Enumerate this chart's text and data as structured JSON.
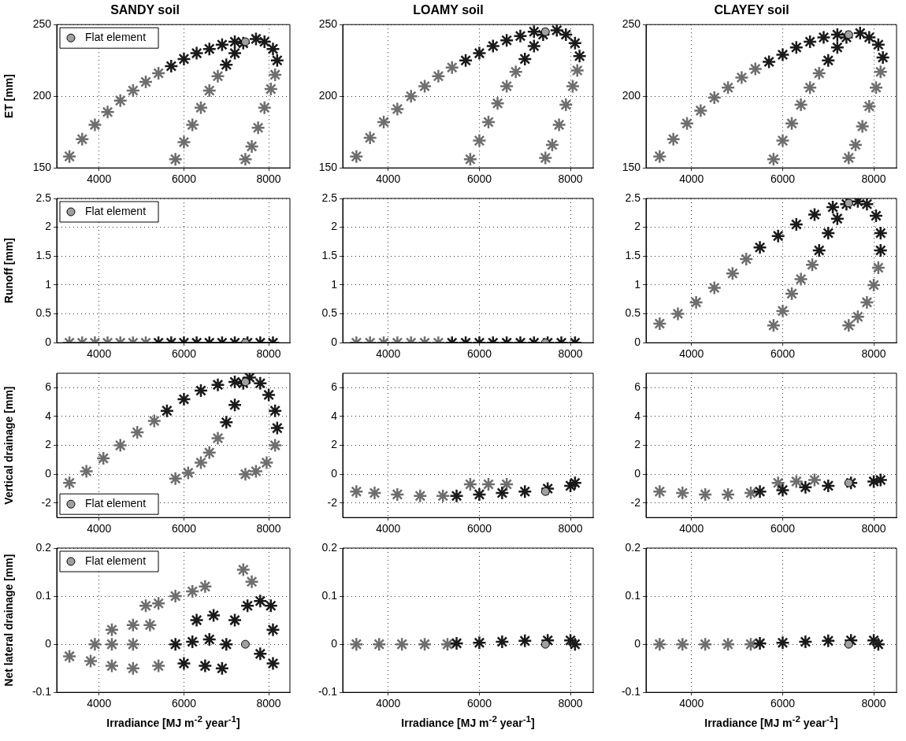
{
  "chart_data": [
    {
      "type": "scatter",
      "title": "SANDY soil",
      "ylabel": "ET [mm]",
      "xlim": [
        3000,
        8500
      ],
      "xticks": [
        4000,
        6000,
        8000
      ],
      "ylim": [
        150,
        250
      ],
      "yticks": [
        150,
        200,
        250
      ],
      "grid": true,
      "legend": "top left",
      "series": [
        {
          "color": "#6e6e6e",
          "marker": "cross",
          "x": [
            3300,
            3600,
            3900,
            4200,
            4500,
            4800,
            5100,
            5400,
            5800,
            6000,
            6200,
            6400,
            6600,
            6800,
            7450,
            7600,
            7750,
            7900,
            8050,
            8150
          ],
          "values": [
            158,
            170,
            180,
            189,
            197,
            204,
            210,
            216,
            156,
            168,
            180,
            192,
            204,
            214,
            156,
            165,
            178,
            192,
            205,
            215
          ]
        },
        {
          "color": "#1a1a1a",
          "marker": "cross",
          "x": [
            5700,
            6000,
            6300,
            6600,
            6900,
            7200,
            7000,
            7200,
            7400,
            8200,
            8100,
            7900,
            7700
          ],
          "values": [
            221,
            226,
            230,
            233,
            236,
            238,
            222,
            230,
            237,
            225,
            233,
            238,
            240
          ]
        },
        {
          "name": "Flat element",
          "color": "#a0a0a0",
          "marker": "circle",
          "x": [
            7450
          ],
          "values": [
            238
          ]
        }
      ]
    },
    {
      "type": "scatter",
      "title": "LOAMY soil",
      "xlim": [
        3000,
        8500
      ],
      "xticks": [
        4000,
        6000,
        8000
      ],
      "ylim": [
        150,
        250
      ],
      "yticks": [
        150,
        200,
        250
      ],
      "grid": true,
      "series": [
        {
          "color": "#6e6e6e",
          "marker": "cross",
          "x": [
            3300,
            3600,
            3900,
            4200,
            4500,
            4800,
            5100,
            5400,
            5800,
            6000,
            6200,
            6400,
            6600,
            6800,
            7450,
            7600,
            7750,
            7900,
            8050,
            8150
          ],
          "values": [
            158,
            171,
            182,
            191,
            200,
            207,
            214,
            220,
            156,
            169,
            182,
            195,
            207,
            217,
            157,
            166,
            180,
            194,
            207,
            218
          ]
        },
        {
          "color": "#1a1a1a",
          "marker": "cross",
          "x": [
            5700,
            6000,
            6300,
            6600,
            6900,
            7200,
            7000,
            7200,
            7400,
            8200,
            8100,
            7900,
            7700
          ],
          "values": [
            225,
            230,
            235,
            239,
            242,
            245,
            226,
            235,
            243,
            228,
            237,
            243,
            246
          ]
        },
        {
          "color": "#a0a0a0",
          "marker": "circle",
          "x": [
            7450
          ],
          "values": [
            245
          ]
        }
      ]
    },
    {
      "type": "scatter",
      "title": "CLAYEY soil",
      "xlim": [
        3000,
        8500
      ],
      "xticks": [
        4000,
        6000,
        8000
      ],
      "ylim": [
        150,
        250
      ],
      "yticks": [
        150,
        200,
        250
      ],
      "grid": true,
      "series": [
        {
          "color": "#6e6e6e",
          "marker": "cross",
          "x": [
            3300,
            3600,
            3900,
            4200,
            4500,
            4800,
            5100,
            5400,
            5800,
            6000,
            6200,
            6400,
            6600,
            6800,
            7450,
            7600,
            7750,
            7900,
            8050,
            8150
          ],
          "values": [
            158,
            170,
            181,
            190,
            199,
            206,
            213,
            219,
            156,
            169,
            181,
            194,
            206,
            216,
            157,
            166,
            179,
            193,
            206,
            217
          ]
        },
        {
          "color": "#1a1a1a",
          "marker": "cross",
          "x": [
            5700,
            6000,
            6300,
            6600,
            6900,
            7200,
            7000,
            7200,
            7400,
            8200,
            8100,
            7900,
            7700
          ],
          "values": [
            224,
            229,
            234,
            238,
            241,
            243,
            225,
            234,
            241,
            227,
            236,
            241,
            244
          ]
        },
        {
          "color": "#a0a0a0",
          "marker": "circle",
          "x": [
            7450
          ],
          "values": [
            243
          ]
        }
      ]
    },
    {
      "type": "scatter",
      "ylabel": "Runoff [mm]",
      "xlim": [
        3000,
        8500
      ],
      "xticks": [
        4000,
        6000,
        8000
      ],
      "ylim": [
        0,
        2.5
      ],
      "yticks": [
        0,
        0.5,
        1,
        1.5,
        2,
        2.5
      ],
      "grid": true,
      "legend": "top left",
      "series": [
        {
          "color": "#6e6e6e",
          "marker": "cross",
          "x": [
            3300,
            3600,
            3900,
            4200,
            4500,
            4800,
            5100
          ],
          "values": [
            0,
            0,
            0,
            0,
            0,
            0,
            0
          ]
        },
        {
          "color": "#1a1a1a",
          "marker": "cross",
          "x": [
            5400,
            5700,
            6000,
            6300,
            6600,
            6900,
            7200,
            7500,
            7800,
            8100
          ],
          "values": [
            0,
            0,
            0,
            0,
            0,
            0,
            0,
            0,
            0,
            0
          ]
        },
        {
          "name": "Flat element",
          "color": "#a0a0a0",
          "marker": "circle",
          "x": [
            7450
          ],
          "values": [
            0
          ]
        }
      ]
    },
    {
      "type": "scatter",
      "xlim": [
        3000,
        8500
      ],
      "xticks": [
        4000,
        6000,
        8000
      ],
      "ylim": [
        0,
        2.5
      ],
      "yticks": [
        0,
        0.5,
        1,
        1.5,
        2,
        2.5
      ],
      "grid": true,
      "series": [
        {
          "color": "#6e6e6e",
          "marker": "cross",
          "x": [
            3300,
            3600,
            3900,
            4200,
            4500,
            4800,
            5100
          ],
          "values": [
            0,
            0,
            0,
            0,
            0,
            0,
            0
          ]
        },
        {
          "color": "#1a1a1a",
          "marker": "cross",
          "x": [
            5400,
            5700,
            6000,
            6300,
            6600,
            6900,
            7200,
            7500,
            7800,
            8100
          ],
          "values": [
            0,
            0,
            0,
            0,
            0,
            0,
            0,
            0,
            0,
            0
          ]
        },
        {
          "color": "#a0a0a0",
          "marker": "circle",
          "x": [
            7450
          ],
          "values": [
            0
          ]
        }
      ]
    },
    {
      "type": "scatter",
      "xlim": [
        3000,
        8500
      ],
      "xticks": [
        4000,
        6000,
        8000
      ],
      "ylim": [
        0,
        2.5
      ],
      "yticks": [
        0,
        0.5,
        1,
        1.5,
        2,
        2.5
      ],
      "grid": true,
      "series": [
        {
          "color": "#6e6e6e",
          "marker": "cross",
          "x": [
            3300,
            3700,
            4100,
            4500,
            4900,
            5200,
            5800,
            6000,
            6200,
            6400,
            6650,
            7450,
            7650,
            7850,
            8000,
            8100
          ],
          "values": [
            0.33,
            0.5,
            0.7,
            0.95,
            1.2,
            1.45,
            0.3,
            0.55,
            0.85,
            1.1,
            1.35,
            0.3,
            0.45,
            0.7,
            1,
            1.3
          ]
        },
        {
          "color": "#1a1a1a",
          "marker": "cross",
          "x": [
            5500,
            5900,
            6300,
            6700,
            7100,
            6800,
            7000,
            7200,
            7400,
            8150,
            8150,
            8050,
            7850,
            7650
          ],
          "values": [
            1.65,
            1.85,
            2.05,
            2.22,
            2.35,
            1.6,
            1.9,
            2.15,
            2.4,
            1.6,
            1.9,
            2.2,
            2.4,
            2.45
          ]
        },
        {
          "color": "#a0a0a0",
          "marker": "circle",
          "x": [
            7450
          ],
          "values": [
            2.42
          ]
        }
      ]
    },
    {
      "type": "scatter",
      "ylabel": "Vertical drainage [mm]",
      "xlim": [
        3000,
        8500
      ],
      "xticks": [
        4000,
        6000,
        8000
      ],
      "ylim": [
        -3,
        7
      ],
      "yticks": [
        -2,
        0,
        2,
        4,
        6
      ],
      "grid": true,
      "legend": "bottom left",
      "series": [
        {
          "color": "#6e6e6e",
          "marker": "cross",
          "x": [
            3300,
            3700,
            4100,
            4500,
            4900,
            5300,
            5800,
            6100,
            6400,
            6600,
            6800,
            7450,
            7700,
            7950,
            8150
          ],
          "values": [
            -0.6,
            0.2,
            1.1,
            2,
            2.9,
            3.7,
            -0.3,
            0.1,
            0.8,
            1.5,
            2.5,
            0,
            0.2,
            0.8,
            2
          ]
        },
        {
          "color": "#1a1a1a",
          "marker": "cross",
          "x": [
            5600,
            6000,
            6400,
            6800,
            7200,
            7000,
            7200,
            7400,
            8200,
            8150,
            8000,
            7800,
            7550
          ],
          "values": [
            4.4,
            5.2,
            5.8,
            6.2,
            6.4,
            3.6,
            4.8,
            6.3,
            3.2,
            4.4,
            5.5,
            6.3,
            6.7
          ]
        },
        {
          "name": "Flat element",
          "color": "#a0a0a0",
          "marker": "circle",
          "x": [
            7450
          ],
          "values": [
            6.4
          ]
        }
      ]
    },
    {
      "type": "scatter",
      "xlim": [
        3000,
        8500
      ],
      "xticks": [
        4000,
        6000,
        8000
      ],
      "ylim": [
        -3,
        7
      ],
      "yticks": [
        -2,
        0,
        2,
        4,
        6
      ],
      "grid": true,
      "series": [
        {
          "color": "#6e6e6e",
          "marker": "cross",
          "x": [
            3300,
            3700,
            4200,
            4700,
            5200,
            5800,
            6200,
            6600
          ],
          "values": [
            -1.2,
            -1.3,
            -1.4,
            -1.5,
            -1.5,
            -0.7,
            -0.7,
            -0.7
          ]
        },
        {
          "color": "#1a1a1a",
          "marker": "cross",
          "x": [
            5500,
            6000,
            6500,
            7000,
            7500,
            8000,
            8100
          ],
          "values": [
            -1.5,
            -1.4,
            -1.3,
            -1.2,
            -1,
            -0.8,
            -0.6
          ]
        },
        {
          "color": "#a0a0a0",
          "marker": "circle",
          "x": [
            7450
          ],
          "values": [
            -1.2
          ]
        }
      ]
    },
    {
      "type": "scatter",
      "xlim": [
        3000,
        8500
      ],
      "xticks": [
        4000,
        6000,
        8000
      ],
      "ylim": [
        -3,
        7
      ],
      "yticks": [
        -2,
        0,
        2,
        4,
        6
      ],
      "grid": true,
      "series": [
        {
          "color": "#6e6e6e",
          "marker": "cross",
          "x": [
            3300,
            3800,
            4300,
            4800,
            5300,
            5900,
            6300,
            6700
          ],
          "values": [
            -1.2,
            -1.3,
            -1.4,
            -1.4,
            -1.3,
            -0.6,
            -0.5,
            -0.4
          ]
        },
        {
          "color": "#1a1a1a",
          "marker": "cross",
          "x": [
            5500,
            6000,
            6500,
            7000,
            7500,
            8000,
            8150
          ],
          "values": [
            -1.2,
            -1.1,
            -0.9,
            -0.8,
            -0.6,
            -0.5,
            -0.4
          ]
        },
        {
          "color": "#a0a0a0",
          "marker": "circle",
          "x": [
            7450
          ],
          "values": [
            -0.6
          ]
        }
      ]
    },
    {
      "type": "scatter",
      "ylabel": "Net lateral drainage [mm]",
      "xlabel": "Irradiance [MJ m$^{-2}$ year$^{-1}$]",
      "xlim": [
        3000,
        8500
      ],
      "xticks": [
        4000,
        6000,
        8000
      ],
      "ylim": [
        -0.1,
        0.2
      ],
      "yticks": [
        -0.1,
        0,
        0.1,
        0.2
      ],
      "grid": true,
      "legend": "top left",
      "series": [
        {
          "color": "#6e6e6e",
          "marker": "cross",
          "x": [
            3300,
            3800,
            4300,
            4800,
            5400,
            3900,
            4300,
            4800,
            4300,
            4800,
            5200,
            5100,
            5400,
            5800,
            6200,
            6500,
            7400,
            7600
          ],
          "values": [
            -0.025,
            -0.035,
            -0.045,
            -0.05,
            -0.045,
            0,
            0,
            0,
            0.03,
            0.04,
            0.04,
            0.08,
            0.085,
            0.1,
            0.11,
            0.12,
            0.155,
            0.13
          ]
        },
        {
          "color": "#1a1a1a",
          "marker": "cross",
          "x": [
            5800,
            6200,
            6600,
            7000,
            7200,
            7500,
            7800,
            8050,
            8100,
            8100,
            7800,
            6000,
            6500,
            6900,
            6300,
            6700
          ],
          "values": [
            0,
            0.005,
            0.01,
            0,
            0.05,
            0.08,
            0.09,
            0.08,
            0.03,
            -0.04,
            -0.02,
            -0.04,
            -0.045,
            -0.05,
            0.05,
            0.06
          ]
        },
        {
          "name": "Flat element",
          "color": "#a0a0a0",
          "marker": "circle",
          "x": [
            7450
          ],
          "values": [
            0
          ]
        }
      ]
    },
    {
      "type": "scatter",
      "xlabel": "Irradiance [MJ m$^{-2}$ year$^{-1}$]",
      "xlim": [
        3000,
        8500
      ],
      "xticks": [
        4000,
        6000,
        8000
      ],
      "ylim": [
        -0.1,
        0.2
      ],
      "yticks": [
        -0.1,
        0,
        0.1,
        0.2
      ],
      "grid": true,
      "series": [
        {
          "color": "#6e6e6e",
          "marker": "cross",
          "x": [
            3300,
            3800,
            4300,
            4800,
            5300
          ],
          "values": [
            0,
            0,
            0,
            0,
            0
          ]
        },
        {
          "color": "#1a1a1a",
          "marker": "cross",
          "x": [
            5500,
            6000,
            6500,
            7000,
            7500,
            8000,
            8100
          ],
          "values": [
            0.002,
            0.003,
            0.005,
            0.007,
            0.008,
            0.008,
            0
          ]
        },
        {
          "color": "#a0a0a0",
          "marker": "circle",
          "x": [
            7450
          ],
          "values": [
            0
          ]
        }
      ]
    },
    {
      "type": "scatter",
      "xlabel": "Irradiance [MJ m$^{-2}$ year$^{-1}$]",
      "xlim": [
        3000,
        8500
      ],
      "xticks": [
        4000,
        6000,
        8000
      ],
      "ylim": [
        -0.1,
        0.2
      ],
      "yticks": [
        -0.1,
        0,
        0.1,
        0.2
      ],
      "grid": true,
      "series": [
        {
          "color": "#6e6e6e",
          "marker": "cross",
          "x": [
            3300,
            3800,
            4300,
            4800,
            5300
          ],
          "values": [
            0,
            0,
            0,
            0,
            0
          ]
        },
        {
          "color": "#1a1a1a",
          "marker": "cross",
          "x": [
            5500,
            6000,
            6500,
            7000,
            7500,
            8000,
            8100
          ],
          "values": [
            0.002,
            0.003,
            0.005,
            0.007,
            0.008,
            0.008,
            0
          ]
        },
        {
          "color": "#a0a0a0",
          "marker": "circle",
          "x": [
            7450
          ],
          "values": [
            0
          ]
        }
      ]
    }
  ]
}
